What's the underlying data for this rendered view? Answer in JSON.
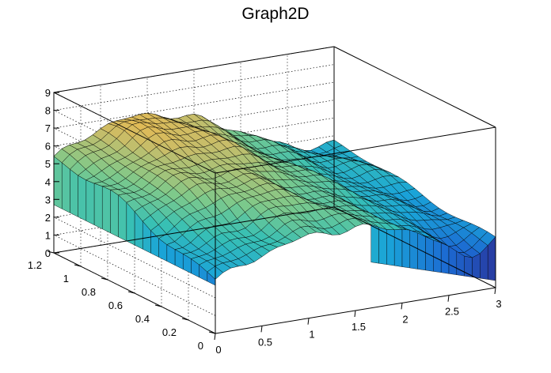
{
  "chart_data": {
    "type": "surface",
    "title": "Graph2D",
    "xlim": [
      0,
      3
    ],
    "ylim": [
      0,
      1.2
    ],
    "zlim": [
      0,
      9
    ],
    "x_ticks": [
      0,
      0.5,
      1,
      1.5,
      2,
      2.5,
      3
    ],
    "y_ticks": [
      0,
      0.2,
      0.4,
      0.6,
      0.8,
      1,
      1.2
    ],
    "z_ticks": [
      0,
      1,
      2,
      3,
      4,
      5,
      6,
      7,
      8,
      9
    ],
    "x_tick_labels": [
      "0",
      "0.5",
      "1",
      "1.5",
      "2",
      "2.5",
      "3"
    ],
    "y_tick_labels": [
      "0",
      "0.2",
      "0.4",
      "0.6",
      "0.8",
      "1",
      "1.2"
    ],
    "z_tick_labels": [
      "0",
      "1",
      "2",
      "3",
      "4",
      "5",
      "6",
      "7",
      "8",
      "9"
    ],
    "grid": true,
    "colormap": [
      "#2a2f95",
      "#1c6ad2",
      "#1aa4d8",
      "#38c0b4",
      "#7fc98a",
      "#c6bd6a",
      "#f2b94a",
      "#fff52a"
    ]
  }
}
